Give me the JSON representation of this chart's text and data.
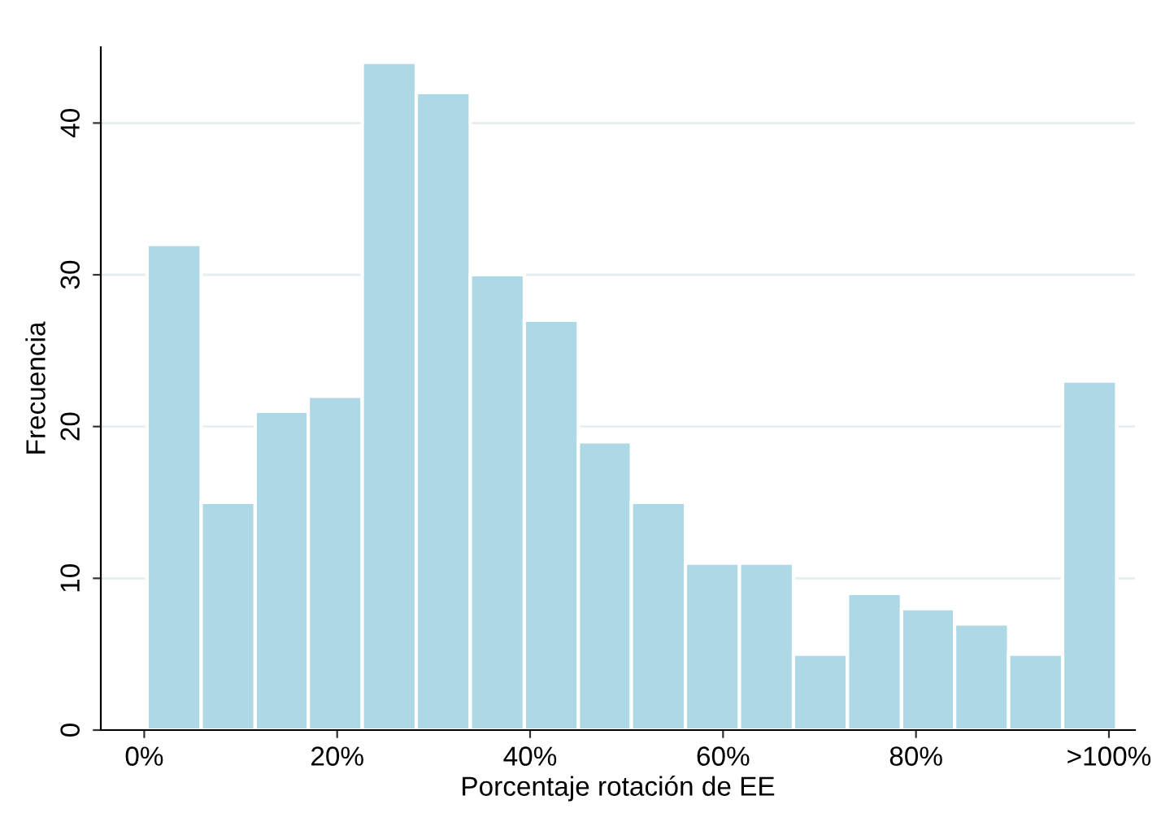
{
  "chart_data": {
    "type": "histogram",
    "xlabel": "Porcentaje rotación de EE",
    "ylabel": "Frecuencia",
    "bins": [
      0.3,
      5.9,
      11.5,
      17.0,
      22.6,
      28.2,
      33.8,
      39.4,
      45.0,
      50.5,
      56.1,
      61.7,
      67.3,
      72.9,
      78.5,
      84.0,
      89.6,
      95.2,
      100.8
    ],
    "values": [
      32,
      15,
      21,
      22,
      44,
      42,
      30,
      27,
      19,
      15,
      11,
      11,
      5,
      9,
      8,
      7,
      5,
      23
    ],
    "color": "#add8e6",
    "xlim": [
      -4.5,
      102.7
    ],
    "ylim": [
      0,
      45
    ],
    "xticks": [
      {
        "value": 0,
        "label": "0%"
      },
      {
        "value": 20,
        "label": "20%"
      },
      {
        "value": 40,
        "label": "40%"
      },
      {
        "value": 60,
        "label": "60%"
      },
      {
        "value": 80,
        "label": "80%"
      },
      {
        "value": 100,
        "label": ">100%"
      }
    ],
    "yticks": [
      0,
      10,
      20,
      30,
      40
    ],
    "grid": "y"
  }
}
